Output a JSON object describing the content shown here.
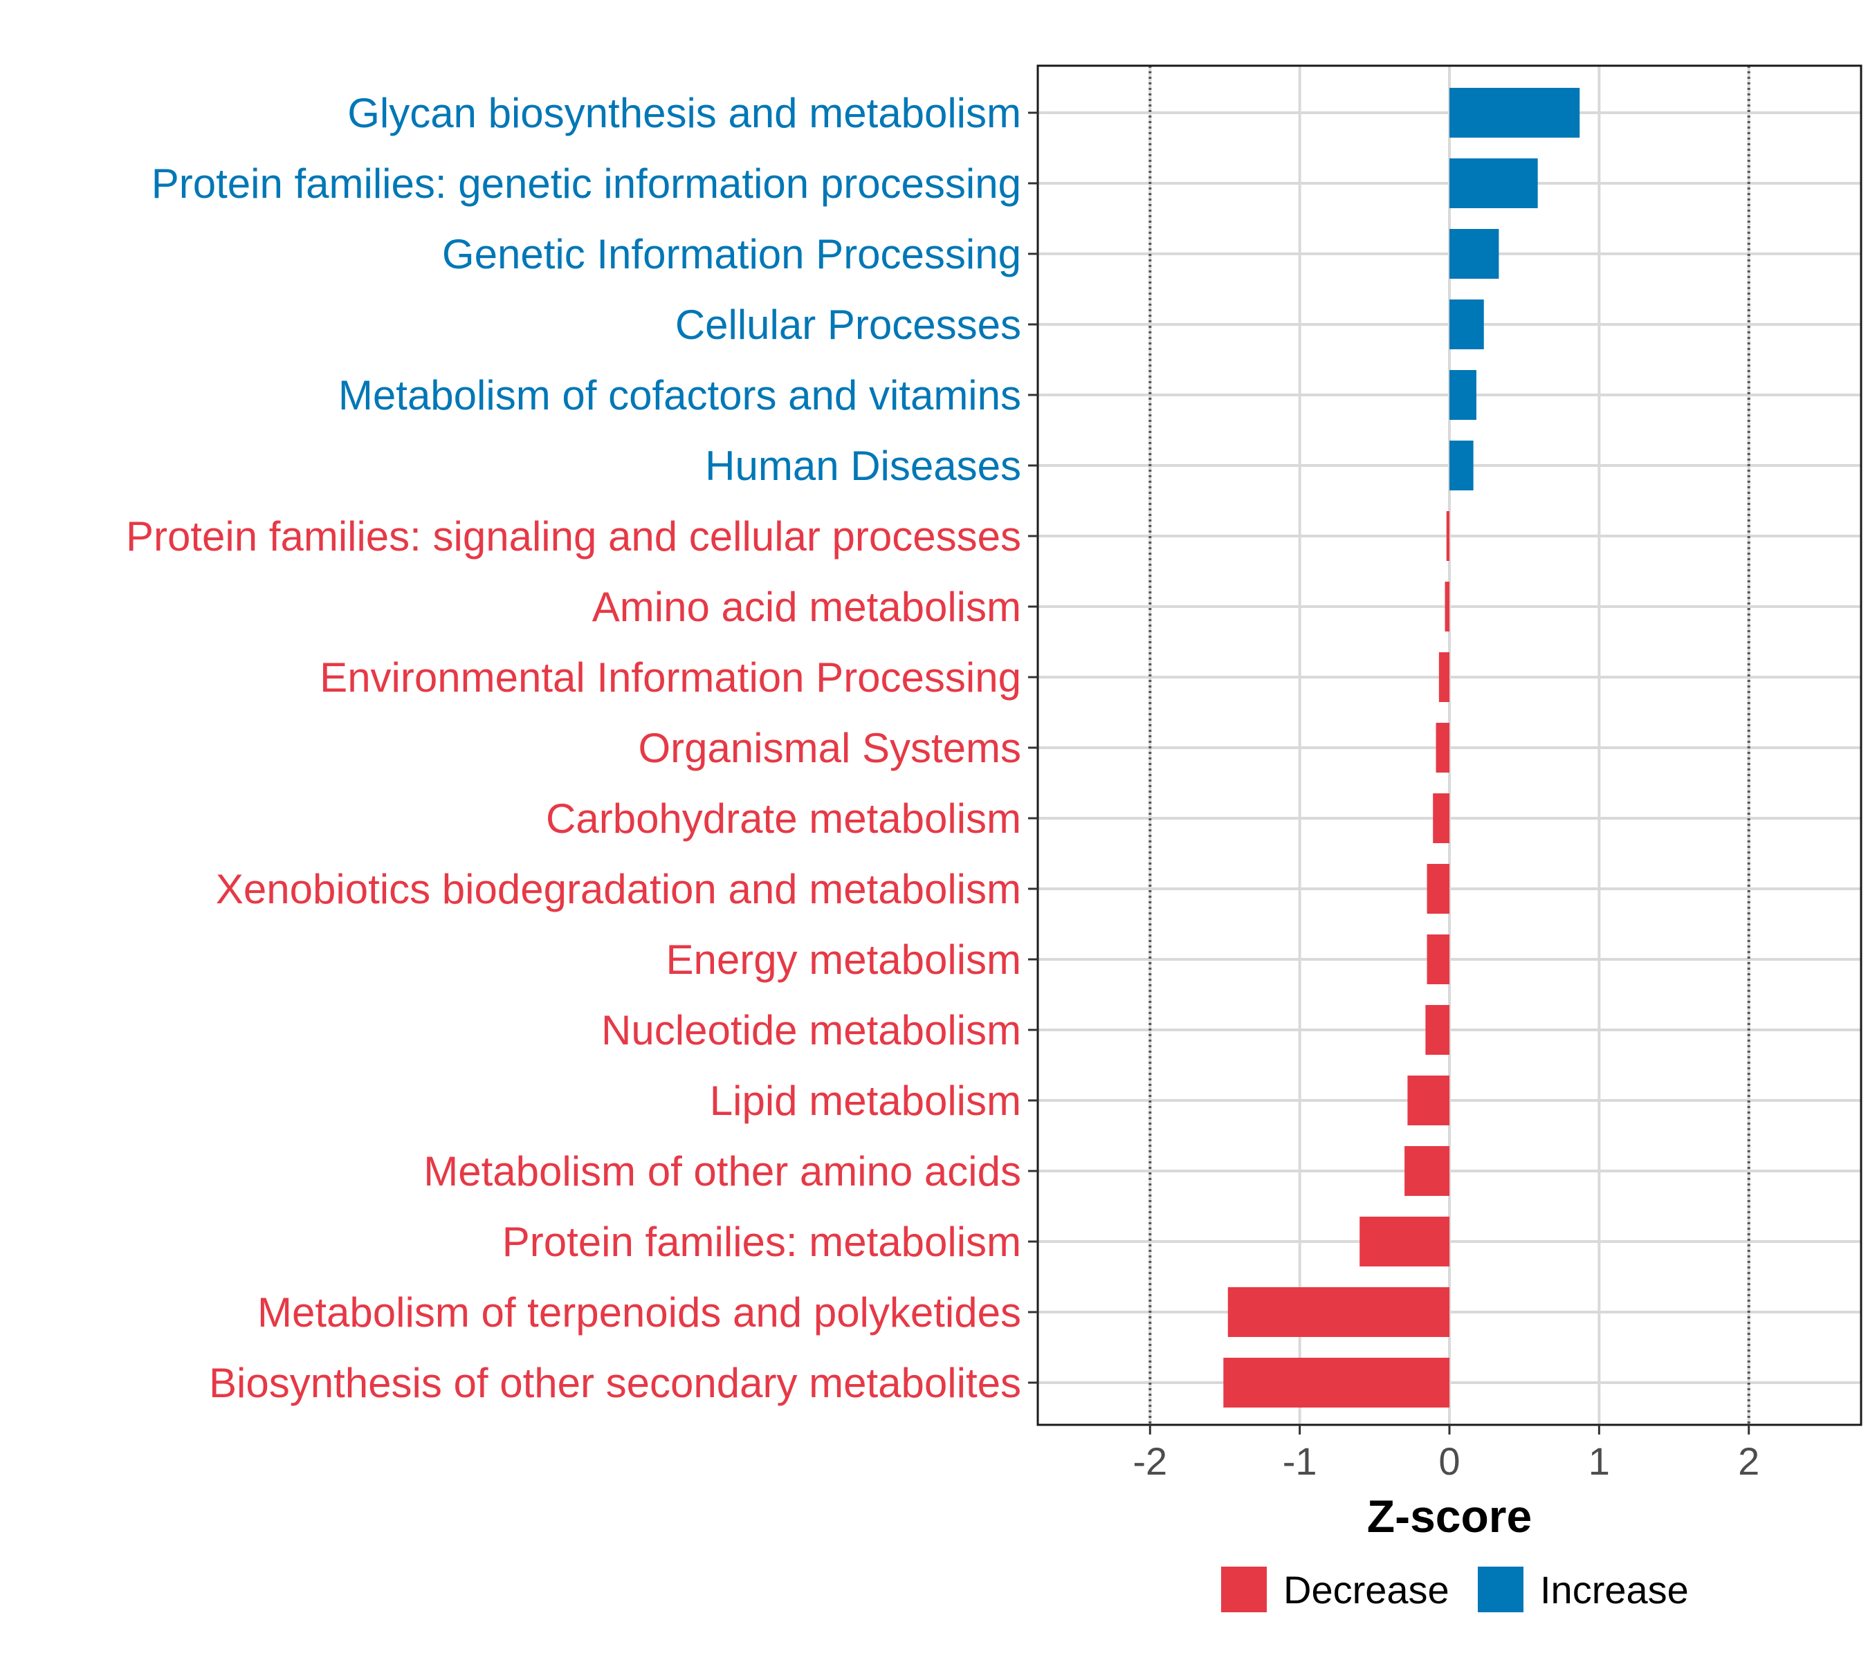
{
  "chart_data": {
    "type": "bar",
    "orientation": "horizontal",
    "xlabel": "Z-score",
    "ylabel": "",
    "xlim": [
      -2.75,
      2.75
    ],
    "x_ticks": [
      -2,
      -1,
      0,
      1,
      2
    ],
    "x_tick_labels": [
      "-2",
      "-1",
      "0",
      "1",
      "2"
    ],
    "reference_lines": [
      -2,
      2
    ],
    "grid": true,
    "legend_position": "bottom",
    "colors": {
      "Decrease": "#E63946",
      "Increase": "#0077B6"
    },
    "legend": [
      {
        "label": "Decrease",
        "color": "#E63946"
      },
      {
        "label": "Increase",
        "color": "#0077B6"
      }
    ],
    "categories": [
      "Glycan biosynthesis and metabolism",
      "Protein families: genetic information processing",
      "Genetic Information Processing",
      "Cellular Processes",
      "Metabolism of cofactors and vitamins",
      "Human Diseases",
      "Protein families: signaling and cellular processes",
      "Amino acid metabolism",
      "Environmental Information Processing",
      "Organismal Systems",
      "Carbohydrate metabolism",
      "Xenobiotics biodegradation and metabolism",
      "Energy metabolism",
      "Nucleotide metabolism",
      "Lipid metabolism",
      "Metabolism of other amino acids",
      "Protein families: metabolism",
      "Metabolism of terpenoids and polyketides",
      "Biosynthesis of other secondary metabolites"
    ],
    "values": [
      0.87,
      0.59,
      0.33,
      0.23,
      0.18,
      0.16,
      -0.02,
      -0.03,
      -0.07,
      -0.09,
      -0.11,
      -0.15,
      -0.15,
      -0.16,
      -0.28,
      -0.3,
      -0.6,
      -1.48,
      -1.51
    ],
    "groups": [
      "Increase",
      "Increase",
      "Increase",
      "Increase",
      "Increase",
      "Increase",
      "Decrease",
      "Decrease",
      "Decrease",
      "Decrease",
      "Decrease",
      "Decrease",
      "Decrease",
      "Decrease",
      "Decrease",
      "Decrease",
      "Decrease",
      "Decrease",
      "Decrease"
    ]
  }
}
